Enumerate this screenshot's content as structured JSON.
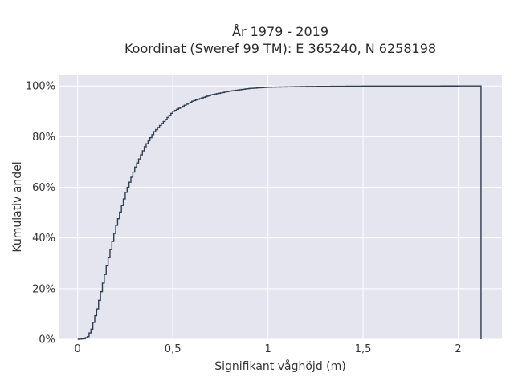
{
  "chart_data": {
    "type": "line",
    "title_lines": [
      "År 1979 - 2019",
      "Koordinat (Sweref 99 TM): E 365240, N 6258198"
    ],
    "xlabel": "Signifikant våghöjd (m)",
    "ylabel": "Kumulativ andel",
    "xlim": [
      -0.1,
      2.23
    ],
    "ylim": [
      0,
      1.045
    ],
    "x_ticks": [
      0,
      0.5,
      1,
      1.5,
      2
    ],
    "x_tick_labels": [
      "0",
      "0,5",
      "1",
      "1,5",
      "2"
    ],
    "y_ticks": [
      0,
      0.2,
      0.4,
      0.6,
      0.8,
      1.0
    ],
    "y_tick_labels": [
      "0%",
      "20%",
      "40%",
      "60%",
      "80%",
      "100%"
    ],
    "grid": true,
    "plot_background": "#e5e5f0",
    "line_color": "#2d3e50",
    "series": [
      {
        "points": [
          [
            0.0,
            0.0
          ],
          [
            0.03,
            0.002
          ],
          [
            0.05,
            0.01
          ],
          [
            0.07,
            0.04
          ],
          [
            0.1,
            0.12
          ],
          [
            0.15,
            0.29
          ],
          [
            0.2,
            0.45
          ],
          [
            0.25,
            0.58
          ],
          [
            0.3,
            0.68
          ],
          [
            0.35,
            0.76
          ],
          [
            0.4,
            0.82
          ],
          [
            0.45,
            0.86
          ],
          [
            0.5,
            0.9
          ],
          [
            0.6,
            0.94
          ],
          [
            0.7,
            0.965
          ],
          [
            0.8,
            0.98
          ],
          [
            0.9,
            0.99
          ],
          [
            1.0,
            0.995
          ],
          [
            1.2,
            0.998
          ],
          [
            1.5,
            0.9995
          ],
          [
            2.1,
            1.0
          ],
          [
            2.12,
            1.0
          ],
          [
            2.12,
            0.0
          ]
        ]
      }
    ]
  }
}
